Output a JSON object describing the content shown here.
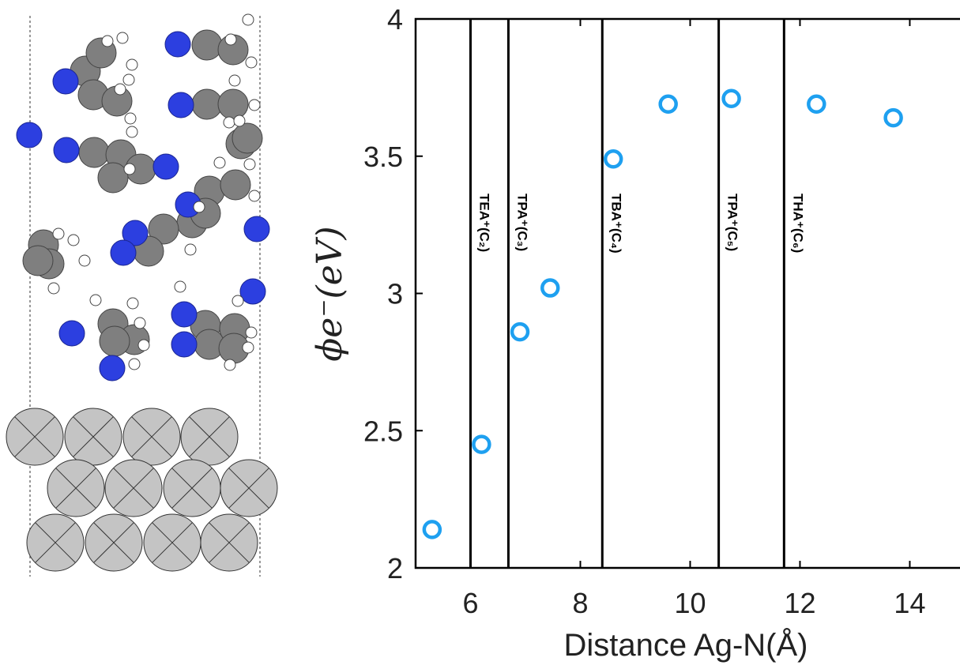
{
  "chart_data": {
    "type": "scatter",
    "xlabel": "Distance Ag-N(Å)",
    "ylabel": "ϕe⁻(eV)",
    "x": [
      5.3,
      6.2,
      6.9,
      7.45,
      8.6,
      9.6,
      10.75,
      12.3,
      13.7
    ],
    "values": [
      2.14,
      2.45,
      2.86,
      3.02,
      3.49,
      3.69,
      3.71,
      3.69,
      3.64
    ],
    "color": "#1ea0f0",
    "xlim": [
      5,
      14.9
    ],
    "xticks": [
      6,
      8,
      10,
      12,
      14
    ],
    "ylim": [
      2,
      4
    ],
    "yticks": [
      2,
      2.5,
      3,
      3.5,
      4
    ],
    "annotations": [
      {
        "x": 6.0,
        "text": "TEA⁺(C₂)"
      },
      {
        "x": 6.69,
        "text": "TPA⁺(C₃)"
      },
      {
        "x": 8.4,
        "text": "TBA⁺(C₄)"
      },
      {
        "x": 10.52,
        "text": "TPA⁺(C₅)"
      },
      {
        "x": 11.71,
        "text": "THA⁺(C₆)"
      }
    ]
  }
}
